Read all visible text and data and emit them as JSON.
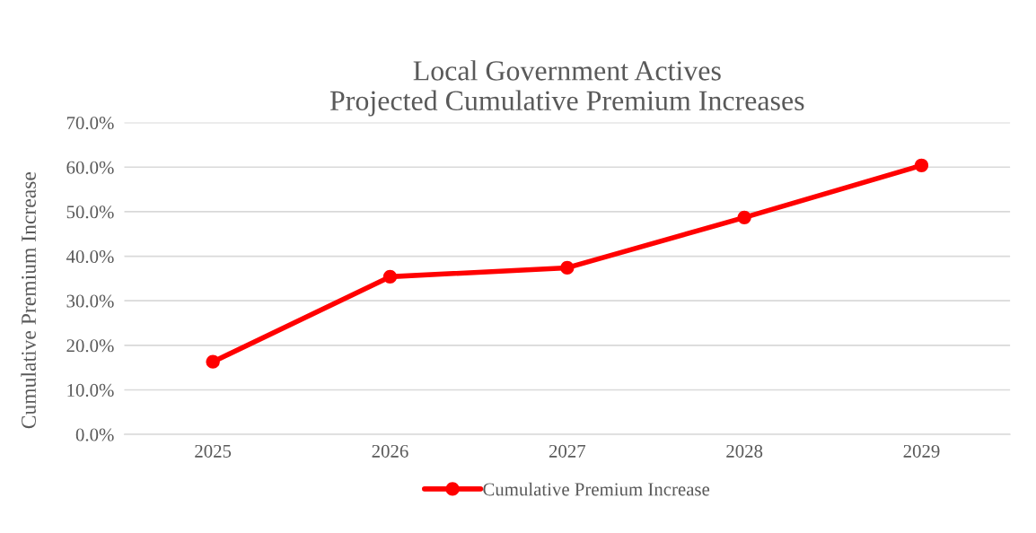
{
  "chart_data": {
    "type": "line",
    "title": "Local Government Actives\nProjected Cumulative Premium Increases",
    "ylabel": "Cumulative Premium Increase",
    "categories": [
      "2025",
      "2026",
      "2027",
      "2028",
      "2029"
    ],
    "series": [
      {
        "name": "Cumulative Premium Increase",
        "color": "#ff0000",
        "values": [
          16.3,
          35.4,
          37.4,
          48.7,
          60.4
        ]
      }
    ],
    "ylim": [
      0,
      70
    ],
    "yticks": [
      {
        "value": 0,
        "label": "0.0%"
      },
      {
        "value": 10,
        "label": "10.0%"
      },
      {
        "value": 20,
        "label": "20.0%"
      },
      {
        "value": 30,
        "label": "30.0%"
      },
      {
        "value": 40,
        "label": "40.0%"
      },
      {
        "value": 50,
        "label": "50.0%"
      },
      {
        "value": 60,
        "label": "60.0%"
      },
      {
        "value": 70,
        "label": "70.0%"
      }
    ],
    "grid": "y",
    "legend": "bottom",
    "marker": "circle",
    "line_style": "solid"
  }
}
